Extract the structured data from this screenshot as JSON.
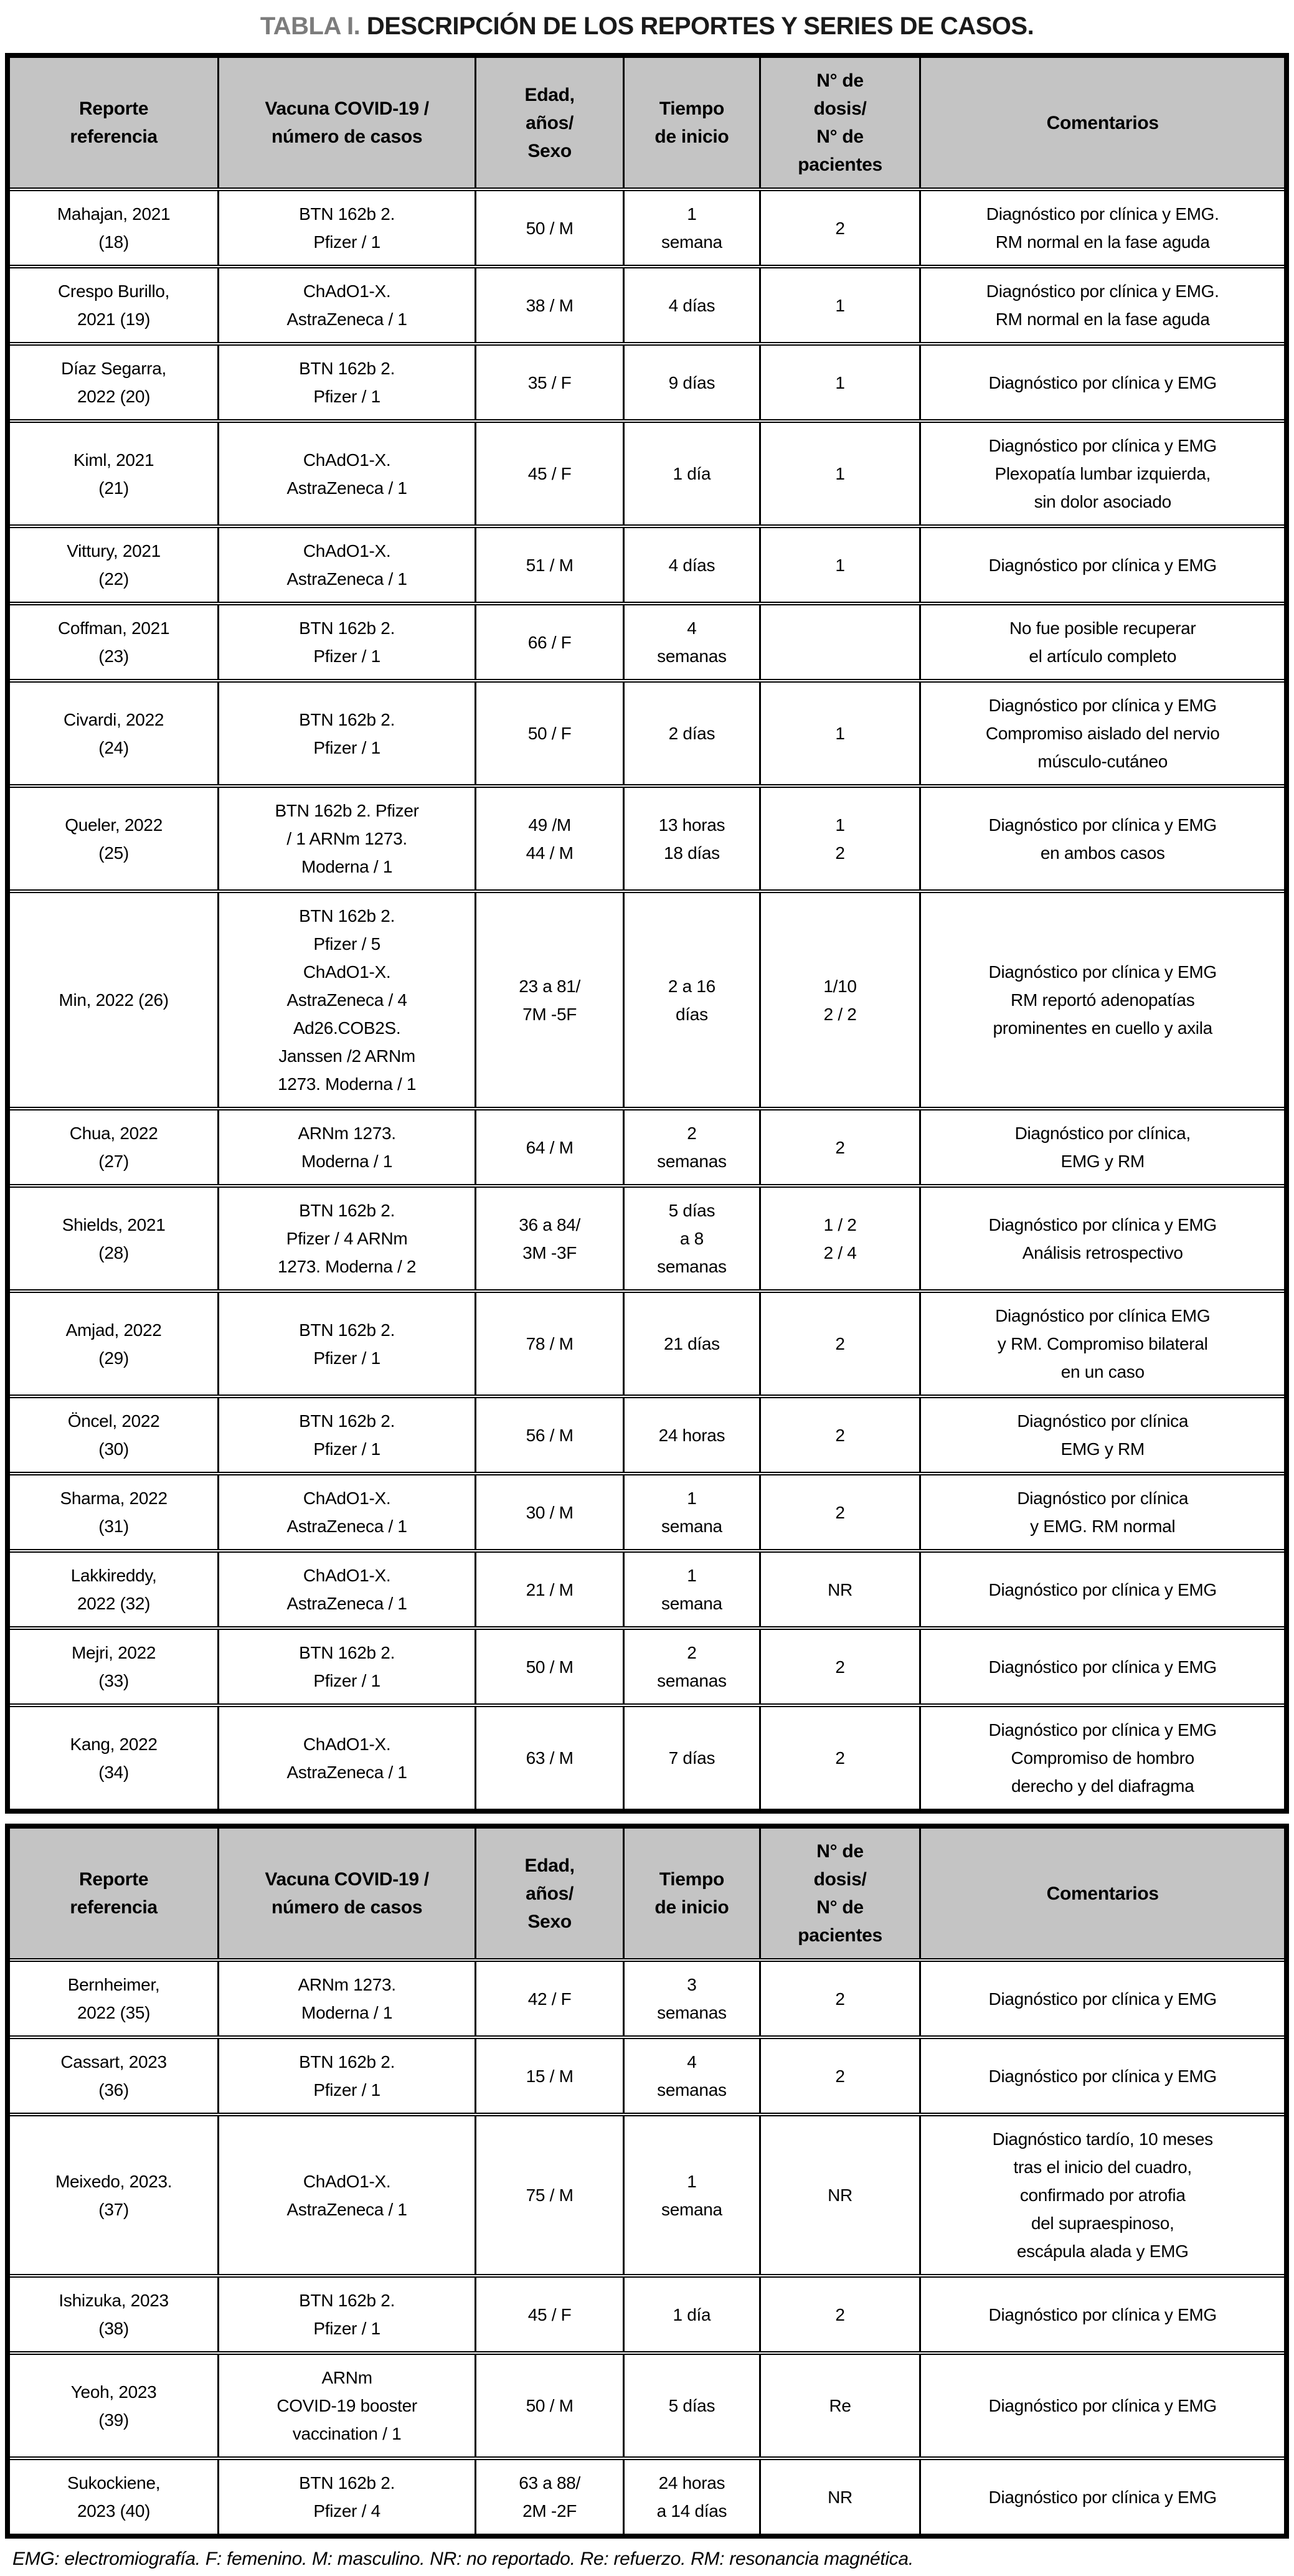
{
  "title": {
    "accent": "TABLA I.",
    "rest": "DESCRIPCIÓN DE LOS REPORTES Y SERIES DE CASOS."
  },
  "table": {
    "headers": [
      "Reporte\nreferencia",
      "Vacuna COVID-19 /\nnúmero de casos",
      "Edad,\naños/\nSexo",
      "Tiempo\nde inicio",
      "N° de\ndosis/\nN° de\npacientes",
      "Comentarios"
    ],
    "sections": [
      {
        "name": "part-1",
        "rows": [
          [
            "Mahajan, 2021\n(18)",
            "BTN 162b 2.\nPfizer / 1",
            "50 / M",
            "1\nsemana",
            "2",
            "Diagnóstico por clínica y EMG.\nRM normal en la fase aguda"
          ],
          [
            "Crespo Burillo,\n2021 (19)",
            "ChAdO1-X.\nAstraZeneca / 1",
            "38 / M",
            "4 días",
            "1",
            "Diagnóstico por clínica y EMG.\nRM normal en la fase aguda"
          ],
          [
            "Díaz Segarra,\n2022 (20)",
            "BTN 162b 2.\nPfizer / 1",
            "35 / F",
            "9 días",
            "1",
            "Diagnóstico por clínica y EMG"
          ],
          [
            "Kiml, 2021\n(21)",
            "ChAdO1-X.\nAstraZeneca / 1",
            "45 / F",
            "1 día",
            "1",
            "Diagnóstico por clínica y EMG\nPlexopatía lumbar izquierda,\nsin dolor asociado"
          ],
          [
            "Vittury, 2021\n(22)",
            "ChAdO1-X.\nAstraZeneca / 1",
            "51 / M",
            "4 días",
            "1",
            "Diagnóstico por clínica y EMG"
          ],
          [
            "Coffman, 2021\n(23)",
            "BTN 162b 2.\nPfizer / 1",
            "66 / F",
            "4\nsemanas",
            "",
            "No fue posible recuperar\nel artículo completo"
          ],
          [
            "Civardi, 2022\n(24)",
            "BTN 162b 2.\nPfizer / 1",
            "50 / F",
            "2 días",
            "1",
            "Diagnóstico por clínica y EMG\nCompromiso aislado del nervio\nmúsculo-cutáneo"
          ],
          [
            "Queler, 2022\n(25)",
            "BTN 162b 2. Pfizer\n/ 1 ARNm 1273.\nModerna / 1",
            "49 /M\n44 / M",
            "13 horas\n18 días",
            "1\n2",
            "Diagnóstico por clínica y EMG\nen ambos casos"
          ],
          [
            "Min, 2022 (26)",
            "BTN 162b 2.\nPfizer / 5\nChAdO1-X.\nAstraZeneca / 4\nAd26.COB2S.\nJanssen /2 ARNm\n1273. Moderna / 1",
            "23 a 81/\n7M -5F",
            "2 a 16\ndías",
            "1/10\n2 / 2",
            "Diagnóstico por clínica y EMG\nRM reportó adenopatías\nprominentes en cuello y axila"
          ],
          [
            "Chua, 2022\n(27)",
            "ARNm 1273.\nModerna / 1",
            "64 / M",
            "2\nsemanas",
            "2",
            "Diagnóstico por clínica,\nEMG y RM"
          ],
          [
            "Shields, 2021\n(28)",
            "BTN 162b 2.\nPfizer / 4 ARNm\n1273. Moderna / 2",
            "36 a 84/\n3M -3F",
            "5 días\na 8\nsemanas",
            "1 / 2\n2 / 4",
            "Diagnóstico por clínica y EMG\nAnálisis retrospectivo"
          ],
          [
            "Amjad, 2022\n(29)",
            "BTN 162b 2.\nPfizer / 1",
            "78 / M",
            "21 días",
            "2",
            "Diagnóstico por clínica EMG\ny RM. Compromiso bilateral\nen un caso"
          ],
          [
            "Öncel, 2022\n(30)",
            "BTN 162b 2.\nPfizer / 1",
            "56 / M",
            "24 horas",
            "2",
            "Diagnóstico por clínica\nEMG y RM"
          ],
          [
            "Sharma, 2022\n(31)",
            "ChAdO1-X.\nAstraZeneca / 1",
            "30 / M",
            "1\nsemana",
            "2",
            "Diagnóstico por clínica\ny EMG. RM normal"
          ],
          [
            "Lakkireddy,\n2022 (32)",
            "ChAdO1-X.\nAstraZeneca / 1",
            "21 / M",
            "1\nsemana",
            "NR",
            "Diagnóstico por clínica y EMG"
          ],
          [
            "Mejri, 2022\n(33)",
            "BTN 162b 2.\nPfizer / 1",
            "50 / M",
            "2\nsemanas",
            "2",
            "Diagnóstico por clínica y EMG"
          ],
          [
            "Kang, 2022\n(34)",
            "ChAdO1-X.\nAstraZeneca / 1",
            "63 / M",
            "7 días",
            "2",
            "Diagnóstico por clínica y EMG\nCompromiso de hombro\nderecho y del diafragma"
          ]
        ]
      },
      {
        "name": "part-2",
        "rows": [
          [
            "Bernheimer,\n2022 (35)",
            "ARNm 1273.\nModerna / 1",
            "42 / F",
            "3\nsemanas",
            "2",
            "Diagnóstico por clínica y EMG"
          ],
          [
            "Cassart, 2023\n(36)",
            "BTN 162b 2.\nPfizer / 1",
            "15 / M",
            "4\nsemanas",
            "2",
            "Diagnóstico por clínica y EMG"
          ],
          [
            "Meixedo, 2023.\n(37)",
            "ChAdO1-X.\nAstraZeneca / 1",
            "75 / M",
            "1\nsemana",
            "NR",
            "Diagnóstico tardío, 10 meses\ntras el inicio del cuadro,\nconfirmado por atrofia\ndel supraespinoso,\nescápula alada y EMG"
          ],
          [
            "Ishizuka, 2023\n(38)",
            "BTN 162b 2.\nPfizer / 1",
            "45 / F",
            "1 día",
            "2",
            "Diagnóstico por clínica y EMG"
          ],
          [
            "Yeoh, 2023\n(39)",
            "ARNm\nCOVID-19 booster\nvaccination / 1",
            "50 / M",
            "5 días",
            "Re",
            "Diagnóstico por clínica y EMG"
          ],
          [
            "Sukockiene,\n2023 (40)",
            "BTN 162b 2.\nPfizer / 4",
            "63 a 88/\n2M -2F",
            "24 horas\na 14 días",
            "NR",
            "Diagnóstico por clínica y EMG"
          ]
        ]
      }
    ]
  },
  "footnote": "EMG: electromiografía. F: femenino. M: masculino. NR: no reportado. Re: refuerzo. RM: resonancia magnética.",
  "colors": {
    "header_bg": "#c4c4c4",
    "title_accent": "#7c7c7c",
    "border": "#000000",
    "text": "#000000"
  }
}
